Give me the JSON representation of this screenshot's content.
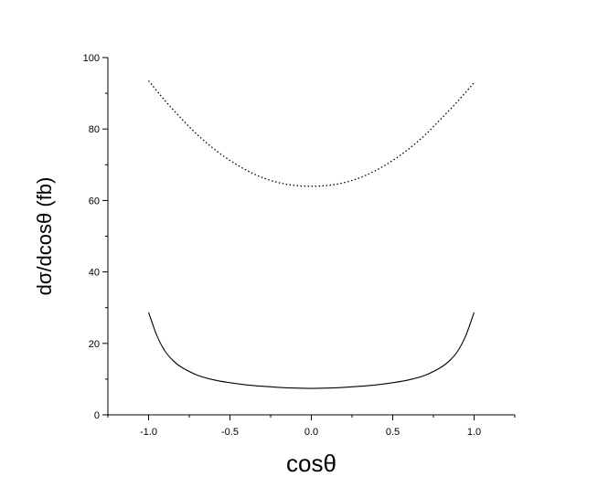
{
  "chart_data": {
    "type": "line",
    "xlabel": "cosθ",
    "ylabel": "dσ/dcosθ (fb)",
    "xlim": [
      -1.25,
      1.25
    ],
    "ylim": [
      0,
      100
    ],
    "x_ticks": [
      -1.0,
      -0.5,
      0.0,
      0.5,
      1.0
    ],
    "x_tick_labels": [
      "-1.0",
      "-0.5",
      "0.0",
      "0.5",
      "1.0"
    ],
    "y_ticks": [
      0,
      20,
      40,
      60,
      80,
      100
    ],
    "y_tick_labels": [
      "0",
      "20",
      "40",
      "60",
      "80",
      "100"
    ],
    "grid": false,
    "legend": "none",
    "series": [
      {
        "style": "dotted",
        "color": "#000000",
        "x": [
          -1.0,
          -0.9,
          -0.8,
          -0.7,
          -0.6,
          -0.5,
          -0.4,
          -0.3,
          -0.2,
          -0.1,
          0.0,
          0.1,
          0.2,
          0.3,
          0.4,
          0.5,
          0.6,
          0.7,
          0.8,
          0.9,
          1.0
        ],
        "y": [
          93.5,
          88.0,
          83.0,
          78.4,
          74.5,
          71.2,
          68.5,
          66.4,
          65.0,
          64.2,
          64.0,
          64.2,
          65.0,
          66.4,
          68.5,
          71.2,
          74.5,
          78.4,
          83.0,
          87.8,
          93.0
        ]
      },
      {
        "style": "solid",
        "color": "#000000",
        "x": [
          -1.0,
          -0.95,
          -0.9,
          -0.85,
          -0.8,
          -0.7,
          -0.6,
          -0.5,
          -0.4,
          -0.3,
          -0.2,
          -0.1,
          0.0,
          0.1,
          0.2,
          0.3,
          0.4,
          0.5,
          0.6,
          0.7,
          0.8,
          0.85,
          0.9,
          0.95,
          1.0
        ],
        "y": [
          28.7,
          22.3,
          17.9,
          15.2,
          13.4,
          11.1,
          9.8,
          9.0,
          8.4,
          8.0,
          7.7,
          7.5,
          7.4,
          7.5,
          7.7,
          8.0,
          8.4,
          9.0,
          9.8,
          11.1,
          13.4,
          15.2,
          17.9,
          22.3,
          28.7
        ]
      }
    ]
  }
}
